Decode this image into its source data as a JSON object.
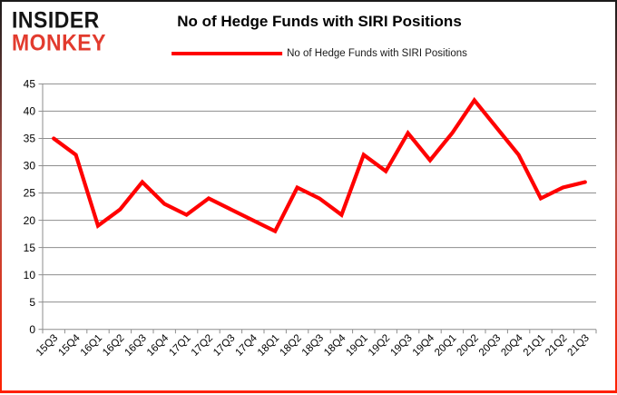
{
  "logo": {
    "line1": "INSIDER",
    "line2": "MONKEY",
    "accent_color": "#e23b2e"
  },
  "title": "No of Hedge Funds with SIRI Positions",
  "legend": {
    "label": "No of Hedge Funds with SIRI Positions",
    "line_color": "#ff0000"
  },
  "chart_data": {
    "type": "line",
    "title": "No of Hedge Funds with SIRI Positions",
    "series_name": "No of Hedge Funds with SIRI Positions",
    "categories": [
      "15Q3",
      "15Q4",
      "16Q1",
      "16Q2",
      "16Q3",
      "16Q4",
      "17Q1",
      "17Q2",
      "17Q3",
      "17Q4",
      "18Q1",
      "18Q2",
      "18Q3",
      "18Q4",
      "19Q1",
      "19Q2",
      "19Q3",
      "19Q4",
      "20Q1",
      "20Q2",
      "20Q3",
      "20Q4",
      "21Q1",
      "21Q2",
      "21Q3"
    ],
    "values": [
      35,
      32,
      19,
      22,
      27,
      23,
      21,
      24,
      22,
      20,
      18,
      26,
      24,
      21,
      32,
      29,
      36,
      31,
      36,
      42,
      37,
      32,
      24,
      26,
      27
    ],
    "xlabel": "",
    "ylabel": "",
    "ylim": [
      0,
      45
    ],
    "ytick_step": 5,
    "grid": true,
    "legend_position": "top",
    "line_color": "#ff0000",
    "grid_color": "#8e8e8e",
    "tick_label_color": "#000000"
  }
}
